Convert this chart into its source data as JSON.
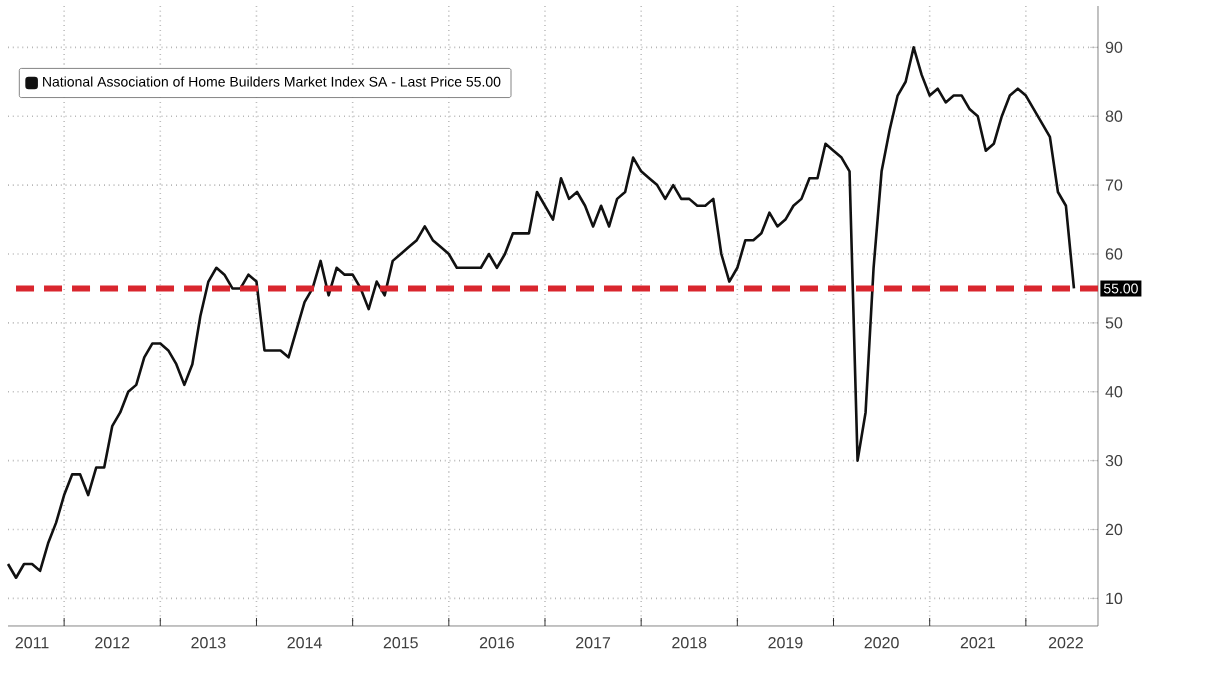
{
  "chart_data": {
    "type": "line",
    "x": [
      "2011-06",
      "2011-07",
      "2011-08",
      "2011-09",
      "2011-10",
      "2011-11",
      "2011-12",
      "2012-01",
      "2012-02",
      "2012-03",
      "2012-04",
      "2012-05",
      "2012-06",
      "2012-07",
      "2012-08",
      "2012-09",
      "2012-10",
      "2012-11",
      "2012-12",
      "2013-01",
      "2013-02",
      "2013-03",
      "2013-04",
      "2013-05",
      "2013-06",
      "2013-07",
      "2013-08",
      "2013-09",
      "2013-10",
      "2013-11",
      "2013-12",
      "2014-01",
      "2014-02",
      "2014-03",
      "2014-04",
      "2014-05",
      "2014-06",
      "2014-07",
      "2014-08",
      "2014-09",
      "2014-10",
      "2014-11",
      "2014-12",
      "2015-01",
      "2015-02",
      "2015-03",
      "2015-04",
      "2015-05",
      "2015-06",
      "2015-07",
      "2015-08",
      "2015-09",
      "2015-10",
      "2015-11",
      "2015-12",
      "2016-01",
      "2016-02",
      "2016-03",
      "2016-04",
      "2016-05",
      "2016-06",
      "2016-07",
      "2016-08",
      "2016-09",
      "2016-10",
      "2016-11",
      "2016-12",
      "2017-01",
      "2017-02",
      "2017-03",
      "2017-04",
      "2017-05",
      "2017-06",
      "2017-07",
      "2017-08",
      "2017-09",
      "2017-10",
      "2017-11",
      "2017-12",
      "2018-01",
      "2018-02",
      "2018-03",
      "2018-04",
      "2018-05",
      "2018-06",
      "2018-07",
      "2018-08",
      "2018-09",
      "2018-10",
      "2018-11",
      "2018-12",
      "2019-01",
      "2019-02",
      "2019-03",
      "2019-04",
      "2019-05",
      "2019-06",
      "2019-07",
      "2019-08",
      "2019-09",
      "2019-10",
      "2019-11",
      "2019-12",
      "2020-01",
      "2020-02",
      "2020-03",
      "2020-04",
      "2020-05",
      "2020-06",
      "2020-07",
      "2020-08",
      "2020-09",
      "2020-10",
      "2020-11",
      "2020-12",
      "2021-01",
      "2021-02",
      "2021-03",
      "2021-04",
      "2021-05",
      "2021-06",
      "2021-07",
      "2021-08",
      "2021-09",
      "2021-10",
      "2021-11",
      "2021-12",
      "2022-01",
      "2022-02",
      "2022-03",
      "2022-04",
      "2022-05",
      "2022-06",
      "2022-07"
    ],
    "series": [
      {
        "name": "National Association of Home Builders Market Index SA - Last Price 55.00",
        "color": "#111111",
        "values": [
          15,
          13,
          15,
          15,
          14,
          18,
          21,
          25,
          28,
          28,
          25,
          29,
          29,
          35,
          37,
          40,
          41,
          45,
          47,
          47,
          46,
          44,
          41,
          44,
          51,
          56,
          58,
          57,
          55,
          55,
          57,
          56,
          46,
          46,
          46,
          45,
          49,
          53,
          55,
          59,
          54,
          58,
          57,
          57,
          55,
          52,
          56,
          54,
          59,
          60,
          61,
          62,
          64,
          62,
          61,
          60,
          58,
          58,
          58,
          58,
          60,
          58,
          60,
          63,
          63,
          63,
          69,
          67,
          65,
          71,
          68,
          69,
          67,
          64,
          67,
          64,
          68,
          69,
          74,
          72,
          71,
          70,
          68,
          70,
          68,
          68,
          67,
          67,
          68,
          60,
          56,
          58,
          62,
          62,
          63,
          66,
          64,
          65,
          67,
          68,
          71,
          71,
          76,
          75,
          74,
          72,
          30,
          37,
          58,
          72,
          78,
          83,
          85,
          90,
          86,
          83,
          84,
          82,
          83,
          83,
          81,
          80,
          75,
          76,
          80,
          83,
          84,
          83,
          81,
          79,
          77,
          69,
          67,
          55
        ]
      }
    ],
    "xlim": [
      "2011-06",
      "2022-10"
    ],
    "xticks": [
      {
        "value": "2012",
        "label": null
      },
      {
        "value": "2013",
        "label": null
      },
      {
        "value": "2014",
        "label": null
      },
      {
        "value": "2015",
        "label": null
      },
      {
        "value": "2016",
        "label": null
      },
      {
        "value": "2017",
        "label": null
      },
      {
        "value": "2018",
        "label": null
      },
      {
        "value": "2019",
        "label": null
      },
      {
        "value": "2020",
        "label": null
      },
      {
        "value": "2021",
        "label": null
      },
      {
        "value": "2022",
        "label": null
      },
      {
        "value": "2011-09",
        "label": "2011"
      },
      {
        "value": "2012-07",
        "label": "2012"
      },
      {
        "value": "2013-07",
        "label": "2013"
      },
      {
        "value": "2014-07",
        "label": "2014"
      },
      {
        "value": "2015-07",
        "label": "2015"
      },
      {
        "value": "2016-07",
        "label": "2016"
      },
      {
        "value": "2017-07",
        "label": "2017"
      },
      {
        "value": "2018-07",
        "label": "2018"
      },
      {
        "value": "2019-07",
        "label": "2019"
      },
      {
        "value": "2020-07",
        "label": "2020"
      },
      {
        "value": "2021-07",
        "label": "2021"
      },
      {
        "value": "2022-06",
        "label": "2022"
      }
    ],
    "ylim": [
      6,
      96
    ],
    "yticks": [
      10,
      20,
      30,
      40,
      50,
      60,
      70,
      80,
      90
    ],
    "ref_lines": [
      {
        "axis": "y",
        "value": 55,
        "label": "55.00",
        "color": "#d9262e",
        "line_style": "dashed"
      }
    ],
    "grid": true,
    "legend": "top left",
    "line_style": "solid",
    "marker": "none"
  }
}
